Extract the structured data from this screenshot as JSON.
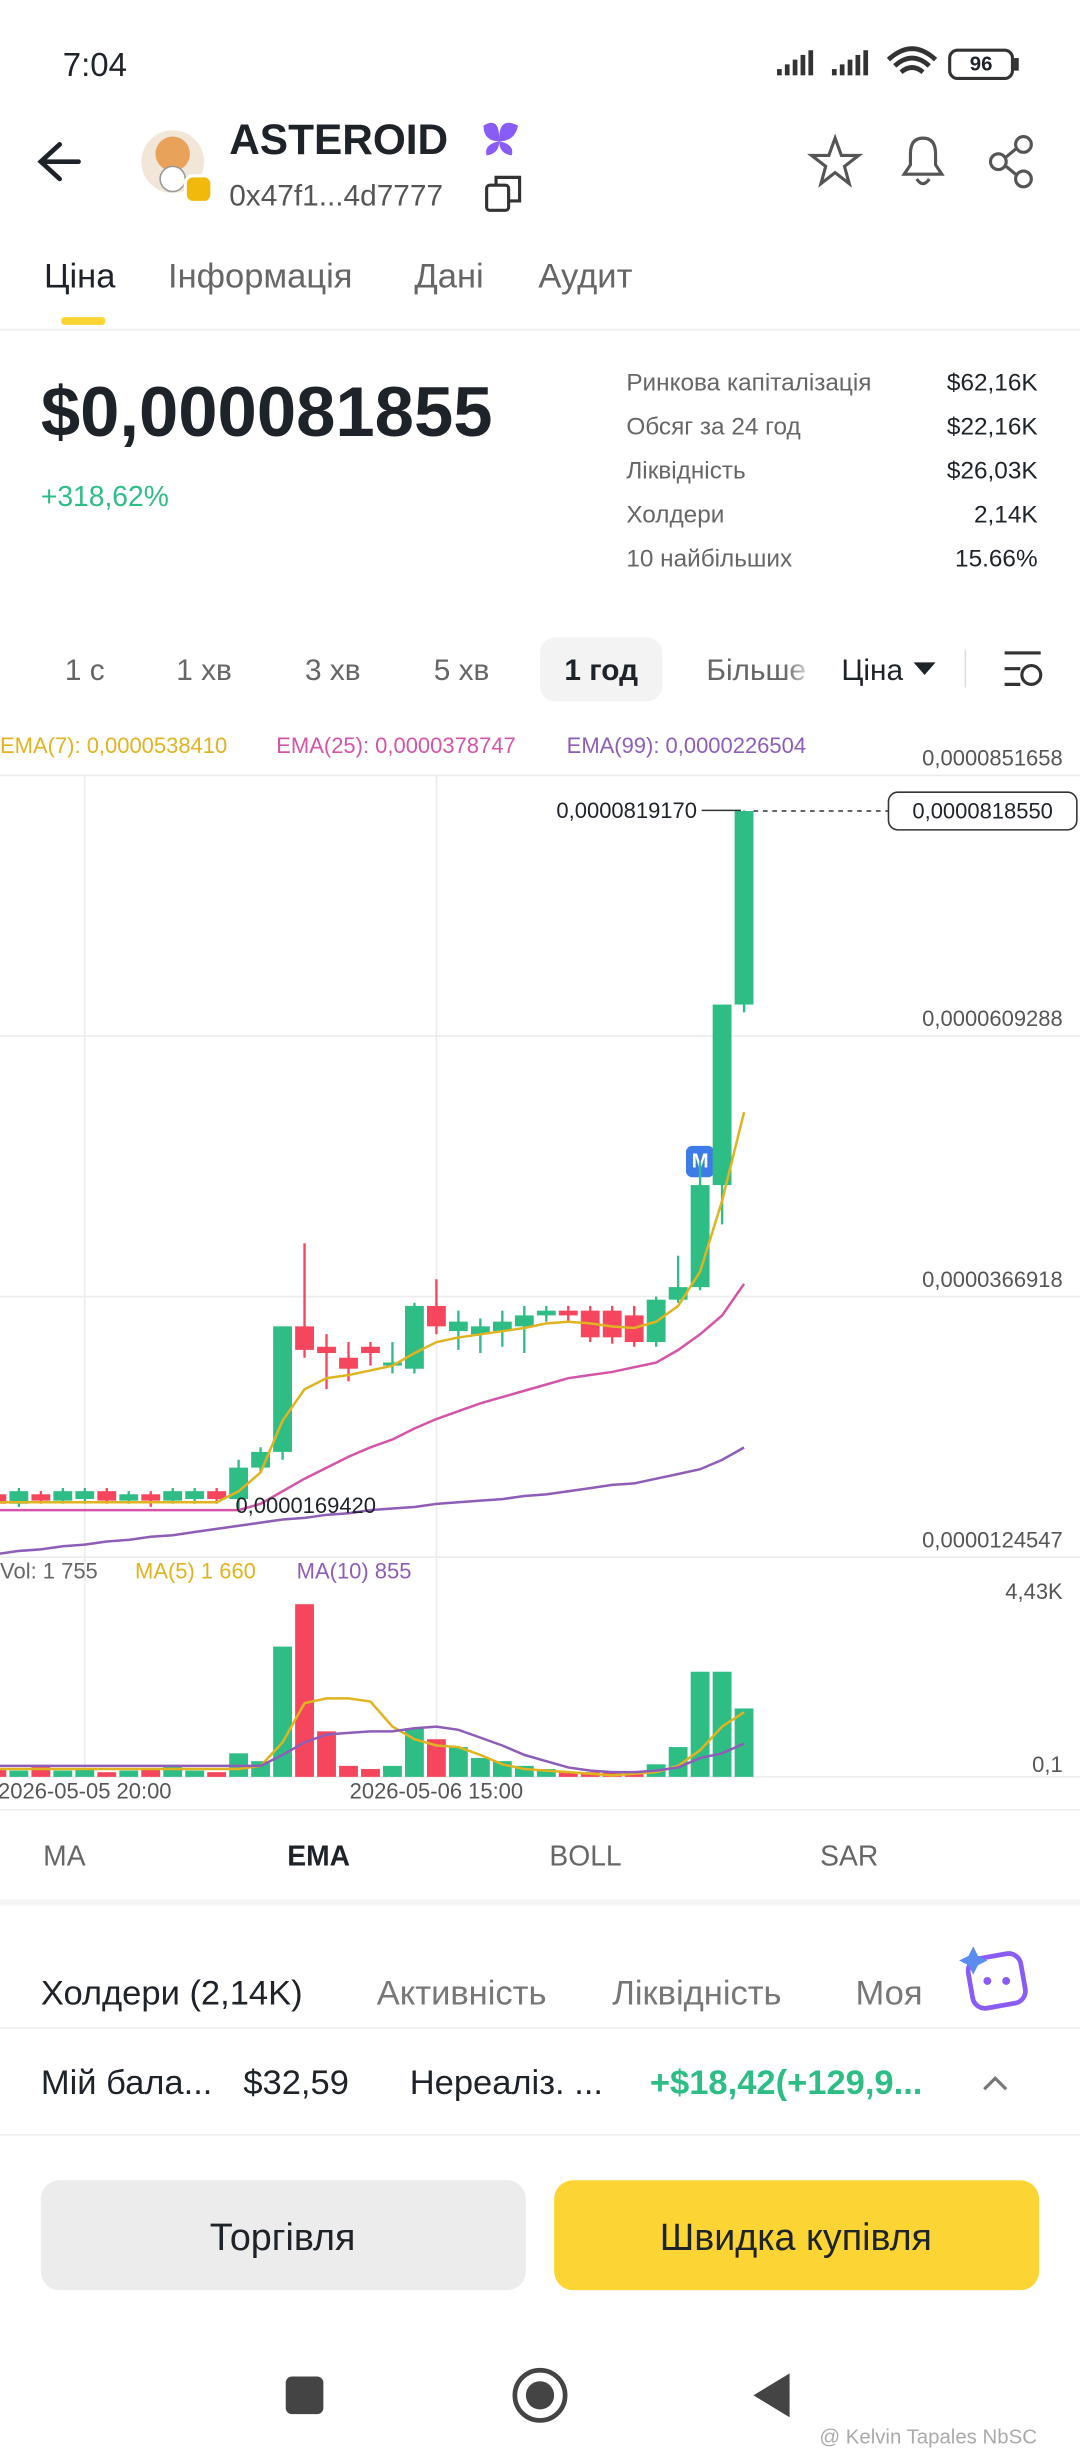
{
  "status_bar": {
    "time": "7:04",
    "battery": "96"
  },
  "header": {
    "title": "ASTEROID",
    "address": "0x47f1...4d7777"
  },
  "tabs": [
    "Ціна",
    "Інформація",
    "Дані",
    "Аудит"
  ],
  "price": {
    "value": "$0,000081855",
    "change": "+318,62%"
  },
  "stats": [
    [
      "Ринкова капіталізація",
      "$62,16K"
    ],
    [
      "Обсяг за 24 год",
      "$22,16K"
    ],
    [
      "Ліквідність",
      "$26,03K"
    ],
    [
      "Холдери",
      "2,14K"
    ],
    [
      "10 найбільших",
      "15.66%"
    ]
  ],
  "timeframes": [
    "1 с",
    "1 хв",
    "3 хв",
    "5 хв",
    "1 год",
    "Більше"
  ],
  "chart_mode": "Ціна",
  "chart_data": {
    "type": "candlestick",
    "categories": [
      null,
      null,
      null,
      null,
      "2026-05-05 20:00",
      null,
      null,
      null,
      null,
      null,
      null,
      null,
      null,
      null,
      null,
      null,
      null,
      null,
      null,
      null,
      "2026-05-06 15:00",
      null,
      null,
      null,
      null,
      null,
      null,
      null,
      null,
      null,
      null,
      null,
      null,
      null,
      null
    ],
    "open": [
      1.83e-05,
      1.742e-05,
      1.83e-05,
      1.771e-05,
      1.786e-05,
      1.859e-05,
      1.771e-05,
      1.83e-05,
      1.771e-05,
      1.786e-05,
      1.859e-05,
      1.786e-05,
      2.078e-05,
      2.224e-05,
      3.392e-05,
      3.202e-05,
      3.1e-05,
      3.202e-05,
      3.027e-05,
      2.998e-05,
      3.582e-05,
      3.348e-05,
      3.319e-05,
      3.348e-05,
      3.392e-05,
      3.494e-05,
      3.538e-05,
      3.538e-05,
      3.538e-05,
      3.494e-05,
      3.246e-05,
      3.64e-05,
      3.757e-05,
      4.706e-05,
      6.385e-05
    ],
    "high": [
      1.859e-05,
      1.888e-05,
      1.859e-05,
      1.888e-05,
      1.888e-05,
      1.888e-05,
      1.859e-05,
      1.859e-05,
      1.888e-05,
      1.888e-05,
      1.888e-05,
      2.151e-05,
      2.267e-05,
      3.392e-05,
      4.165e-05,
      3.319e-05,
      3.246e-05,
      3.246e-05,
      3.246e-05,
      3.611e-05,
      3.83e-05,
      3.538e-05,
      3.465e-05,
      3.538e-05,
      3.582e-05,
      3.582e-05,
      3.582e-05,
      3.582e-05,
      3.582e-05,
      3.582e-05,
      3.669e-05,
      4.049e-05,
      4.925e-05,
      6.385e-05,
      8.1917e-05
    ],
    "low": [
      1.713e-05,
      1.713e-05,
      1.742e-05,
      1.742e-05,
      1.742e-05,
      1.742e-05,
      1.742e-05,
      1.713e-05,
      1.742e-05,
      1.742e-05,
      1.742e-05,
      1.6942e-05,
      2.033e-05,
      2.151e-05,
      3.1e-05,
      2.808e-05,
      2.881e-05,
      3.027e-05,
      2.954e-05,
      2.954e-05,
      3.319e-05,
      3.173e-05,
      3.144e-05,
      3.202e-05,
      3.144e-05,
      3.436e-05,
      3.436e-05,
      3.246e-05,
      3.231e-05,
      3.202e-05,
      3.202e-05,
      3.611e-05,
      3.728e-05,
      4.341e-05,
      6.312e-05
    ],
    "close": [
      1.742e-05,
      1.859e-05,
      1.771e-05,
      1.859e-05,
      1.859e-05,
      1.771e-05,
      1.83e-05,
      1.771e-05,
      1.859e-05,
      1.859e-05,
      1.786e-05,
      2.078e-05,
      2.224e-05,
      3.392e-05,
      3.173e-05,
      3.144e-05,
      2.998e-05,
      3.144e-05,
      3.056e-05,
      3.582e-05,
      3.392e-05,
      3.436e-05,
      3.392e-05,
      3.436e-05,
      3.494e-05,
      3.538e-05,
      3.494e-05,
      3.29e-05,
      3.29e-05,
      3.246e-05,
      3.64e-05,
      3.757e-05,
      4.706e-05,
      6.385e-05,
      8.1855e-05
    ],
    "up_color": "#2ebd85",
    "down_color": "#f6465d",
    "ylim": [
      1.24547e-05,
      8.51658e-05
    ],
    "yticks": [
      {
        "value": 8.51658e-05,
        "label": "0,0000851658"
      },
      {
        "value": 6.09288e-05,
        "label": "0,0000609288"
      },
      {
        "value": 3.66918e-05,
        "label": "0,0000366918"
      },
      {
        "value": 1.24547e-05,
        "label": "0,0000124547"
      }
    ],
    "grid": true,
    "lines": [
      {
        "name": "EMA(7): 0,0000538410",
        "color": "#e0b320",
        "values": [
          1.756e-05,
          1.756e-05,
          1.756e-05,
          1.756e-05,
          1.756e-05,
          1.756e-05,
          1.756e-05,
          1.756e-05,
          1.756e-05,
          1.756e-05,
          1.756e-05,
          1.858e-05,
          2.033e-05,
          2.515e-05,
          2.807e-05,
          2.91e-05,
          2.939e-05,
          2.982e-05,
          3.026e-05,
          3.143e-05,
          3.245e-05,
          3.289e-05,
          3.318e-05,
          3.347e-05,
          3.377e-05,
          3.42e-05,
          3.435e-05,
          3.42e-05,
          3.391e-05,
          3.377e-05,
          3.435e-05,
          3.581e-05,
          3.902e-05,
          4.559e-05,
          5.3841e-05
        ]
      },
      {
        "name": "EMA(25): 0,0000378747",
        "color": "#d455a8",
        "values": [
          1.683e-05,
          1.683e-05,
          1.683e-05,
          1.683e-05,
          1.683e-05,
          1.683e-05,
          1.683e-05,
          1.683e-05,
          1.683e-05,
          1.683e-05,
          1.683e-05,
          1.683e-05,
          1.741e-05,
          1.858e-05,
          1.975e-05,
          2.077e-05,
          2.179e-05,
          2.267e-05,
          2.34e-05,
          2.442e-05,
          2.53e-05,
          2.603e-05,
          2.676e-05,
          2.734e-05,
          2.793e-05,
          2.851e-05,
          2.91e-05,
          2.939e-05,
          2.968e-05,
          3.012e-05,
          3.055e-05,
          3.172e-05,
          3.318e-05,
          3.493e-05,
          3.78747e-05
        ]
      },
      {
        "name": "EMA(99): 0,0000226504",
        "color": "#8e5db8",
        "values": [
          1.274e-05,
          1.303e-05,
          1.318e-05,
          1.347e-05,
          1.362e-05,
          1.391e-05,
          1.406e-05,
          1.435e-05,
          1.449e-05,
          1.479e-05,
          1.508e-05,
          1.537e-05,
          1.566e-05,
          1.595e-05,
          1.61e-05,
          1.639e-05,
          1.654e-05,
          1.683e-05,
          1.698e-05,
          1.712e-05,
          1.741e-05,
          1.756e-05,
          1.771e-05,
          1.785e-05,
          1.814e-05,
          1.829e-05,
          1.858e-05,
          1.887e-05,
          1.917e-05,
          1.931e-05,
          1.975e-05,
          2.019e-05,
          2.063e-05,
          2.15e-05,
          2.26504e-05
        ]
      }
    ],
    "last_price": {
      "value": 8.1855e-05,
      "label": "0,0000818550"
    },
    "max": {
      "value": 8.1917e-05,
      "label": "0,0000819170"
    },
    "min": {
      "value": 1.6942e-05,
      "label": "0,0000169420"
    },
    "volume": {
      "name": "Vol: 1 755",
      "values": [
        201,
        161,
        282,
        161,
        201,
        121,
        161,
        201,
        282,
        161,
        121,
        604,
        403,
        3343,
        4430,
        1168,
        282,
        201,
        282,
        1248,
        966,
        765,
        483,
        403,
        282,
        201,
        121,
        121,
        121,
        121,
        322,
        765,
        2698,
        2698,
        1755
      ],
      "ylim": [
        0,
        5316
      ],
      "yticks": [
        {
          "value": 4430,
          "label": "4,43K"
        },
        {
          "value": 0.1,
          "label": "0,1"
        }
      ],
      "lines": [
        {
          "name": "MA(5) 1 660",
          "color": "#e0b320",
          "values": [
            201,
            201,
            201,
            201,
            201,
            201,
            201,
            201,
            201,
            201,
            201,
            201,
            282,
            886,
            1893,
            2014,
            2014,
            1933,
            1289,
            966,
            805,
            765,
            564,
            322,
            201,
            161,
            121,
            81,
            40,
            81,
            121,
            282,
            685,
            1289,
            1660
          ]
        },
        {
          "name": "MA(10) 855",
          "color": "#8e5db8",
          "values": [
            282,
            282,
            282,
            282,
            282,
            282,
            282,
            282,
            282,
            282,
            282,
            282,
            282,
            564,
            886,
            1087,
            1128,
            1168,
            1168,
            1248,
            1289,
            1208,
            1007,
            805,
            564,
            403,
            242,
            161,
            121,
            121,
            161,
            242,
            483,
            604,
            855
          ]
        }
      ]
    }
  },
  "indicators": [
    "MA",
    "EMA",
    "BOLL",
    "SAR"
  ],
  "bottom_tabs": [
    "Холдери (2,14K)",
    "Активність",
    "Ліквідність",
    "Моя"
  ],
  "balance": {
    "label": "Мій бала...",
    "value": "$32,59",
    "pnl_label": "Нереаліз. ...",
    "pnl_value": "+$18,42(+129,9..."
  },
  "buttons": [
    "Торгівля",
    "Швидка купівля"
  ],
  "watermark": "@ Kelvin Tapales NbSC"
}
